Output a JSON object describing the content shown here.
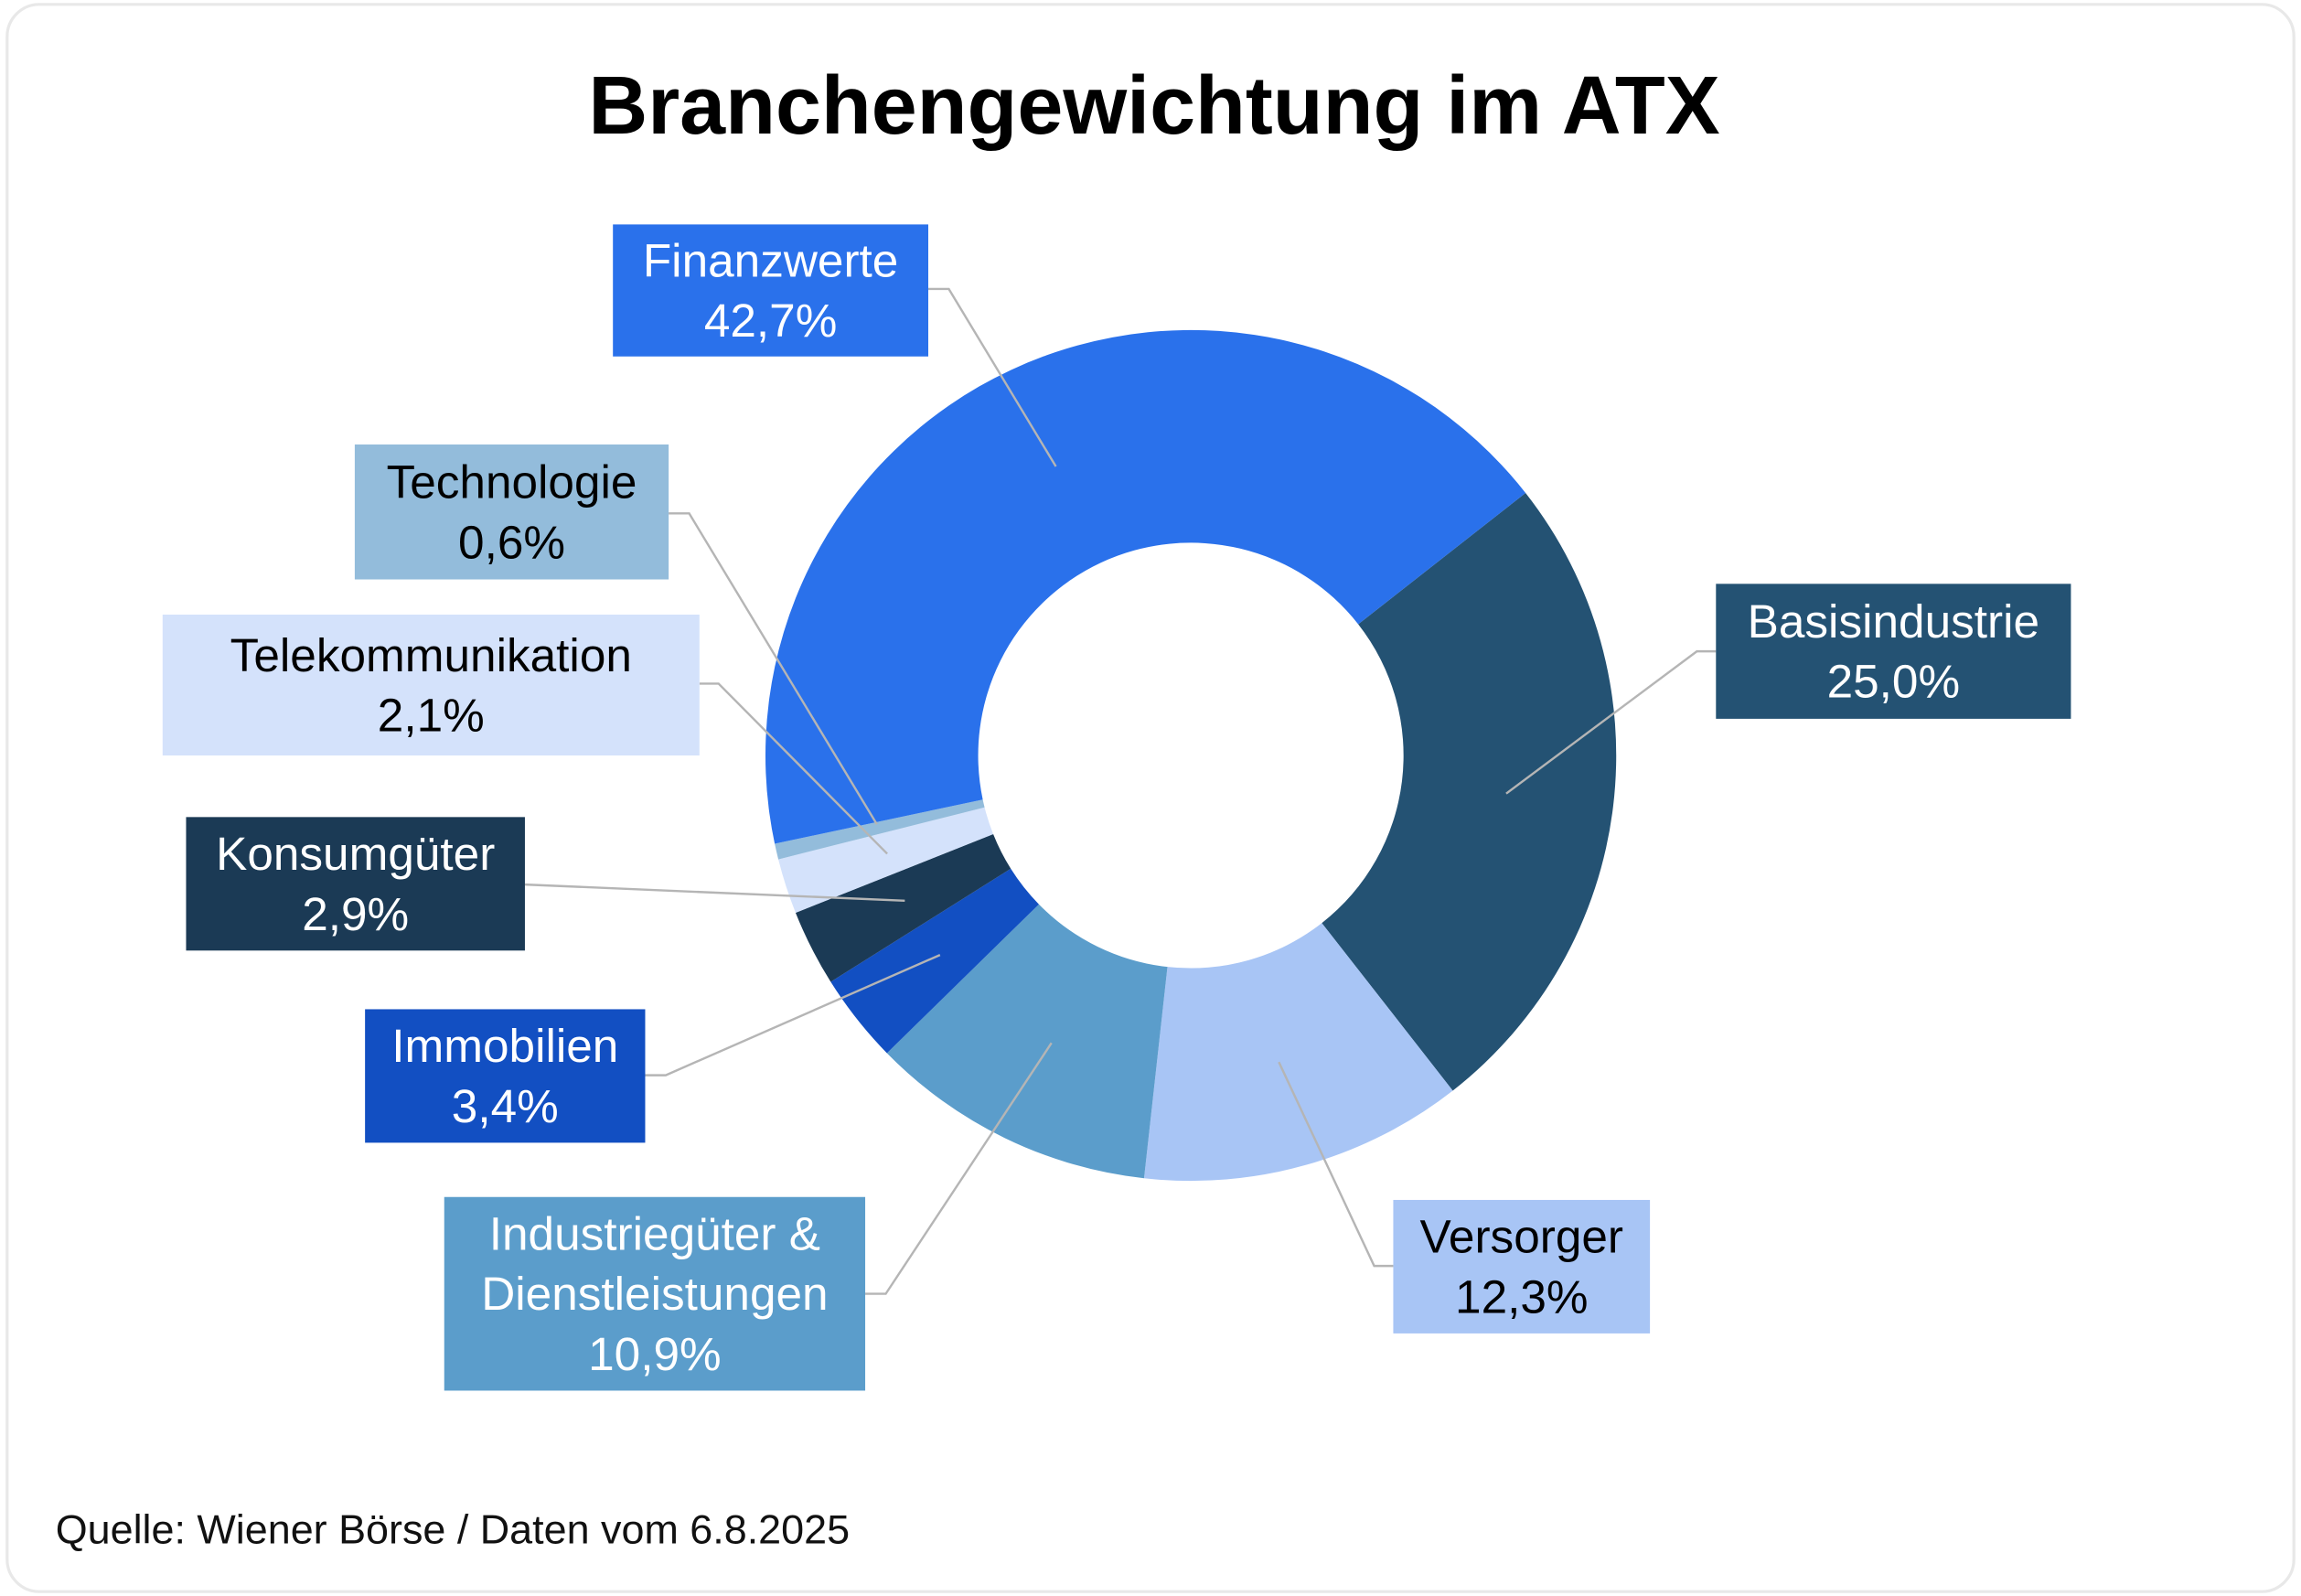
{
  "chart_data": {
    "type": "pie",
    "variant": "donut",
    "title": "Branchengewichtung im ATX",
    "source": "Quelle: Wiener Börse / Daten vom 6.8.2025",
    "slices": [
      {
        "name": "Basisindustrie",
        "value": 25.0,
        "label": "25,0%",
        "color": "#245273",
        "text_color": "#ffffff"
      },
      {
        "name": "Versorger",
        "value": 12.3,
        "label": "12,3%",
        "color": "#a8c5f5",
        "text_color": "#000000"
      },
      {
        "name": "Industriegüter & Dienstleistungen",
        "name_lines": [
          "Industriegüter &",
          "Dienstleistungen"
        ],
        "value": 10.9,
        "label": "10,9%",
        "color": "#5b9dcb",
        "text_color": "#ffffff"
      },
      {
        "name": "Immobilien",
        "value": 3.4,
        "label": "3,4%",
        "color": "#124fc2",
        "text_color": "#ffffff"
      },
      {
        "name": "Konsumgüter",
        "value": 2.9,
        "label": "2,9%",
        "color": "#1b3a55",
        "text_color": "#ffffff"
      },
      {
        "name": "Telekommunikation",
        "value": 2.1,
        "label": "2,1%",
        "color": "#d4e2fb",
        "text_color": "#000000"
      },
      {
        "name": "Technologie",
        "value": 0.6,
        "label": "0,6%",
        "color": "#93bcdb",
        "text_color": "#000000"
      },
      {
        "name": "Finanzwerte",
        "value": 42.7,
        "label": "42,7%",
        "color": "#2a71eb",
        "text_color": "#ffffff"
      }
    ]
  }
}
